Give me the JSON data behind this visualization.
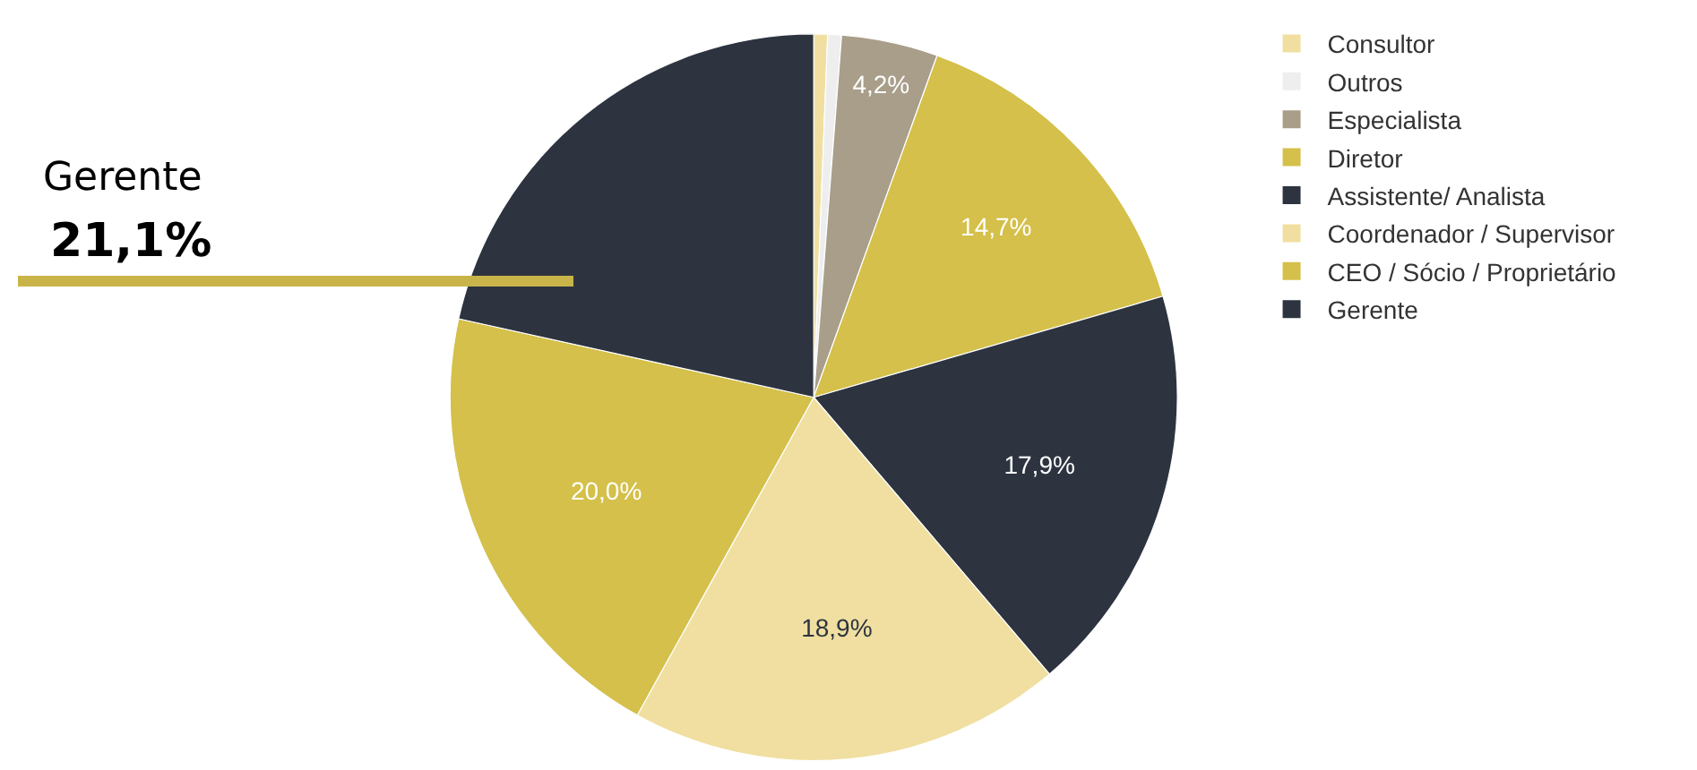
{
  "chart_data": {
    "type": "pie",
    "categories": [
      "Consultor",
      "Outros",
      "Especialista",
      "Diretor",
      "Assistente/ Analista",
      "Coordenador / Supervisor",
      "CEO / Sócio / Proprietário",
      "Gerente"
    ],
    "values": [
      0.6,
      0.6,
      4.2,
      14.7,
      17.9,
      18.9,
      20.0,
      21.1
    ],
    "colors": [
      "#f0dfa0",
      "#eeeeee",
      "#a89e8a",
      "#d4c04a",
      "#2d3440",
      "#f0dfa0",
      "#d4c04a",
      "#2d3440"
    ],
    "value_labels": [
      null,
      null,
      "4,2%",
      "14,7%",
      "17,9%",
      "18,9%",
      "20,0%",
      null
    ],
    "annotations": [
      "Gerente",
      "21,1%"
    ],
    "legend": "right"
  }
}
